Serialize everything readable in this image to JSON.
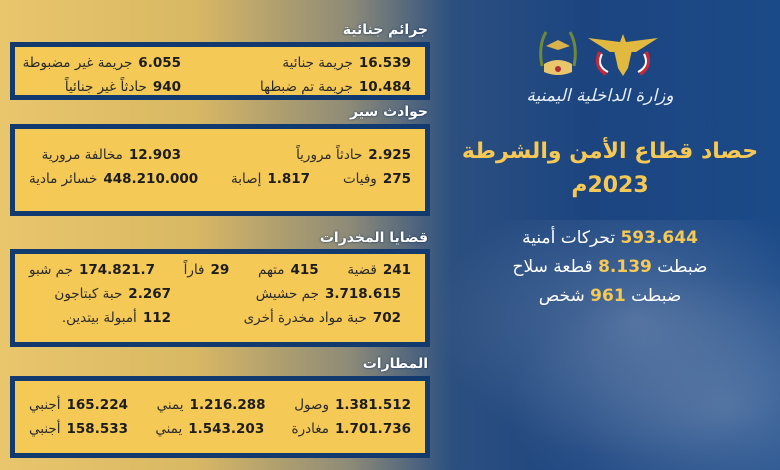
{
  "logo": {
    "ministry_text": "وزارة الداخلية اليمنية"
  },
  "headline": {
    "line1": "حصاد قطاع الأمن والشرطة",
    "line2": "2023م"
  },
  "highlights": [
    {
      "before": "",
      "value": "593.644",
      "after": "تحركات أمنية"
    },
    {
      "before": "ضبطت",
      "value": "8.139",
      "after": "قطعة سلاح"
    },
    {
      "before": "ضبطت",
      "value": "961",
      "after": "شخص"
    }
  ],
  "sections": [
    {
      "title": "جرائم جنائية",
      "rows": [
        [
          {
            "n": "16.539",
            "l": "جريمة جنائية"
          },
          {
            "n": "6.055",
            "l": "جريمة غير مضبوطة"
          }
        ],
        [
          {
            "n": "10.484",
            "l": "جريمة تم ضبطها"
          },
          {
            "n": "940",
            "l": "حادثاً غير جنائياً"
          }
        ]
      ]
    },
    {
      "title": "حوادث سير",
      "rows": [
        [
          {
            "n": "2.925",
            "l": "حادثاً مرورياً"
          },
          {
            "n": "12.903",
            "l": "مخالفة مرورية"
          }
        ],
        [
          {
            "n": "275",
            "l": "وفيات"
          },
          {
            "n": "1.817",
            "l": "إصابة"
          },
          {
            "n": "448.210.000",
            "l": "خسائر مادية"
          }
        ]
      ]
    },
    {
      "title": "قضايا المخدرات",
      "rows": [
        [
          {
            "n": "241",
            "l": "قضية"
          },
          {
            "n": "415",
            "l": "متهم"
          },
          {
            "n": "29",
            "l": "فاراً"
          },
          {
            "n": "174.821.7",
            "l": "جم شبو"
          }
        ],
        [
          {
            "n": "3.718.615",
            "l": "جم حشيش"
          },
          {
            "n": "2.267",
            "l": "حبة كبتاجون"
          }
        ],
        [
          {
            "n": "702",
            "l": "حبة مواد مخدرة أخرى"
          },
          {
            "n": "112",
            "l": "أمبولة بيتدين."
          }
        ]
      ]
    },
    {
      "title": "المطارات",
      "rows": [
        [
          {
            "n": "1.381.512",
            "l": "وصول"
          },
          {
            "n": "1.216.288",
            "l": "يمني"
          },
          {
            "n": "165.224",
            "l": "أجنبي"
          }
        ],
        [
          {
            "n": "1.701.736",
            "l": "مغادرة"
          },
          {
            "n": "1.543.203",
            "l": "يمني"
          },
          {
            "n": "158.533",
            "l": "أجنبي"
          }
        ]
      ]
    }
  ],
  "colors": {
    "gold": "#f5c955",
    "navy": "#123a6e",
    "blue": "#1b4a88"
  }
}
